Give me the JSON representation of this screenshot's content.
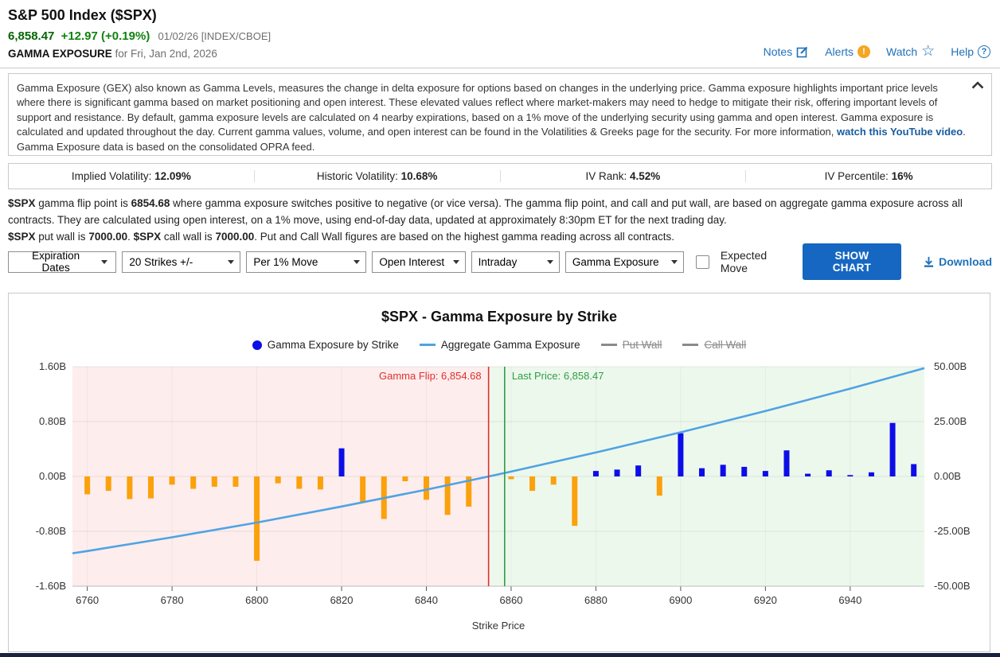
{
  "header": {
    "title": "S&P 500 Index ($SPX)",
    "price": "6,858.47",
    "change": "+12.97 (+0.19%)",
    "date_info": "01/02/26 [INDEX/CBOE]",
    "section_label": "GAMMA EXPOSURE",
    "section_date": " for Fri, Jan 2nd, 2026",
    "links": {
      "notes": "Notes",
      "alerts": "Alerts",
      "watch": "Watch",
      "help": "Help"
    },
    "icons": {
      "alert_glyph": "!",
      "help_glyph": "?",
      "watch_glyph": "☆"
    }
  },
  "description": {
    "text_before": "Gamma Exposure (GEX) also known as Gamma Levels, measures the change in delta exposure for options based on changes in the underlying price. Gamma exposure highlights important price levels where there is significant gamma based on market positioning and open interest. These elevated values reflect where market-makers may need to hedge to mitigate their risk, offering important levels of support and resistance. By default, gamma exposure levels are calculated on 4 nearby expirations, based on a 1% move of the underlying security using gamma and open interest. Gamma exposure is calculated and updated throughout the day. Current gamma values, volume, and open interest can be found in the Volatilities & Greeks page for the security. For more information, ",
    "link_text": "watch this YouTube video",
    "text_after": ". Gamma Exposure data is based on the consolidated OPRA feed."
  },
  "stats": [
    {
      "label": "Implied Volatility: ",
      "value": "12.09%"
    },
    {
      "label": "Historic Volatility: ",
      "value": "10.68%"
    },
    {
      "label": "IV Rank: ",
      "value": "4.52%"
    },
    {
      "label": "IV Percentile: ",
      "value": "16%"
    }
  ],
  "flip_note": {
    "parts": [
      [
        "$SPX",
        true
      ],
      [
        " gamma flip point is ",
        false
      ],
      [
        "6854.68",
        true
      ],
      [
        " where gamma exposure switches positive to negative (or vice versa). The gamma flip point, and call and put wall, are based on aggregate gamma exposure across all contracts. They are calculated using open interest, on a 1% move, using end-of-day data, updated at approximately 8:30pm ET for the next trading day.\n",
        false
      ],
      [
        "$SPX",
        true
      ],
      [
        " put wall is ",
        false
      ],
      [
        "7000.00",
        true
      ],
      [
        ". ",
        false
      ],
      [
        "$SPX",
        true
      ],
      [
        " call wall is ",
        false
      ],
      [
        "7000.00",
        true
      ],
      [
        ". Put and Call Wall figures are based on the highest gamma reading across all contracts.",
        false
      ]
    ]
  },
  "filters": {
    "expiration_dates": "Expiration Dates",
    "selects": [
      "20 Strikes +/-",
      "Per 1% Move",
      "Open Interest",
      "Intraday",
      "Gamma Exposure"
    ],
    "expected_move": "Expected Move",
    "show_chart": "SHOW CHART",
    "download": "Download"
  },
  "chart_data": {
    "type": "bar",
    "title": "$SPX - Gamma Exposure by Strike",
    "xlabel": "Strike Price",
    "legend": [
      {
        "label": "Gamma Exposure by Strike",
        "marker": "dot",
        "color": "#0d0de8",
        "struck": false
      },
      {
        "label": "Aggregate Gamma Exposure",
        "marker": "line",
        "color": "#4fa3e3",
        "struck": false
      },
      {
        "label": "Put Wall",
        "marker": "line",
        "color": "#8a8a8a",
        "struck": true
      },
      {
        "label": "Call Wall",
        "marker": "line",
        "color": "#8a8a8a",
        "struck": true
      }
    ],
    "x_range": [
      6756.5,
      6957.5
    ],
    "x_ticks": [
      6760,
      6780,
      6800,
      6820,
      6840,
      6860,
      6880,
      6900,
      6920,
      6940
    ],
    "left_axis": {
      "title": "Gamma Exposure by Strike (B)",
      "range": [
        -1.6,
        1.6
      ],
      "values": [
        1.6,
        0.8,
        0,
        -0.8,
        -1.6
      ],
      "labels": [
        "1.60B",
        "0.80B",
        "0.00B",
        "-0.80B",
        "-1.60B"
      ]
    },
    "right_axis": {
      "title": "Aggregate Gamma Exposure (B)",
      "range": [
        -50,
        50
      ],
      "values": [
        50,
        25,
        0,
        -25,
        -50
      ],
      "labels": [
        "50.00B",
        "25.00B",
        "0.00B",
        "-25.00B",
        "-50.00B"
      ]
    },
    "bars": [
      [
        6760,
        -0.26
      ],
      [
        6765,
        -0.21
      ],
      [
        6770,
        -0.33
      ],
      [
        6775,
        -0.32
      ],
      [
        6780,
        -0.12
      ],
      [
        6785,
        -0.18
      ],
      [
        6790,
        -0.15
      ],
      [
        6795,
        -0.15
      ],
      [
        6800,
        -1.23
      ],
      [
        6805,
        -0.1
      ],
      [
        6810,
        -0.18
      ],
      [
        6815,
        -0.19
      ],
      [
        6820,
        0.41
      ],
      [
        6825,
        -0.38
      ],
      [
        6830,
        -0.62
      ],
      [
        6835,
        -0.07
      ],
      [
        6840,
        -0.34
      ],
      [
        6845,
        -0.56
      ],
      [
        6850,
        -0.44
      ],
      [
        6860,
        -0.04
      ],
      [
        6865,
        -0.21
      ],
      [
        6870,
        -0.12
      ],
      [
        6875,
        -0.72
      ],
      [
        6880,
        0.08
      ],
      [
        6885,
        0.1
      ],
      [
        6890,
        0.16
      ],
      [
        6895,
        -0.28
      ],
      [
        6900,
        0.63
      ],
      [
        6905,
        0.12
      ],
      [
        6910,
        0.17
      ],
      [
        6915,
        0.14
      ],
      [
        6920,
        0.08
      ],
      [
        6925,
        0.38
      ],
      [
        6930,
        0.04
      ],
      [
        6935,
        0.09
      ],
      [
        6940,
        0.02
      ],
      [
        6945,
        0.06
      ],
      [
        6950,
        0.78
      ],
      [
        6955,
        0.18
      ]
    ],
    "line": [
      [
        6756.5,
        -35
      ],
      [
        6760,
        -34
      ],
      [
        6780,
        -27.7
      ],
      [
        6800,
        -21
      ],
      [
        6820,
        -13.7
      ],
      [
        6840,
        -6
      ],
      [
        6854.7,
        0
      ],
      [
        6860,
        2.2
      ],
      [
        6880,
        10.9
      ],
      [
        6900,
        20.1
      ],
      [
        6920,
        29.8
      ],
      [
        6940,
        40
      ],
      [
        6957.5,
        49.3
      ]
    ],
    "gamma_flip": {
      "label": "Gamma Flip: 6,854.68",
      "value": 6854.68
    },
    "last_price": {
      "label": "Last Price: 6,858.47",
      "value": 6858.47
    },
    "colors": {
      "positive_bar": "#0d0de8",
      "negative_bar": "#fba10c",
      "aggregate_line": "#4fa3e3",
      "gamma_flip": "#e03030",
      "last_price": "#2f9e44",
      "flip_zone_left": "#fdeded",
      "flip_zone_right": "#edf8ed"
    }
  }
}
